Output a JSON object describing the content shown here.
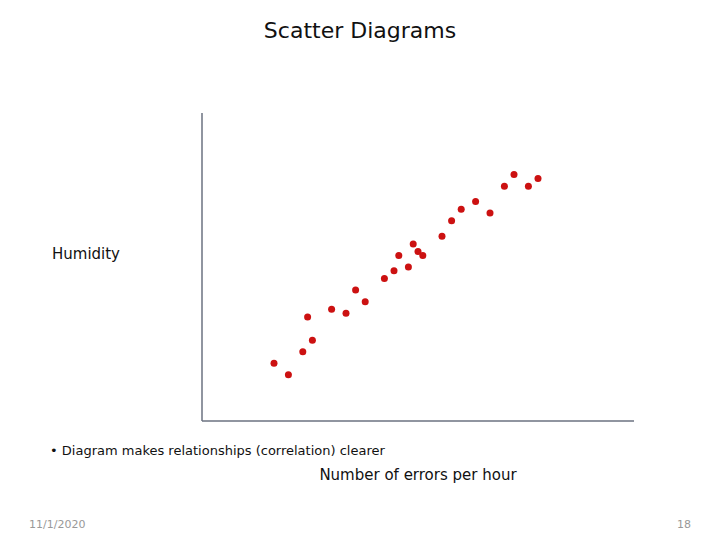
{
  "chart_data": {
    "type": "scatter",
    "title": "Scatter Diagrams",
    "x_label": "Number of errors per hour",
    "y_label": "Humidity",
    "annotations": [
      "• Diagram makes relationships (correlation) clearer",
      "11/1/2020",
      "18"
    ],
    "x": [
      1.5,
      1.8,
      2.1,
      2.3,
      2.2,
      2.7,
      3.0,
      3.2,
      3.4,
      3.8,
      4.0,
      4.1,
      4.3,
      4.5,
      4.4,
      4.6,
      5.0,
      5.2,
      5.4,
      5.7,
      6.0,
      6.3,
      6.5,
      6.8,
      7.0
    ],
    "values": [
      1.5,
      1.2,
      1.8,
      2.1,
      2.7,
      2.9,
      2.8,
      3.4,
      3.1,
      3.7,
      3.9,
      4.3,
      4.0,
      4.4,
      4.6,
      4.3,
      4.8,
      5.2,
      5.5,
      5.7,
      5.4,
      6.1,
      6.4,
      6.1,
      6.3
    ],
    "color": "#cc1111",
    "xlim": [
      0,
      9
    ],
    "ylim": [
      0,
      8
    ],
    "tick_labels": false,
    "grid": false
  }
}
